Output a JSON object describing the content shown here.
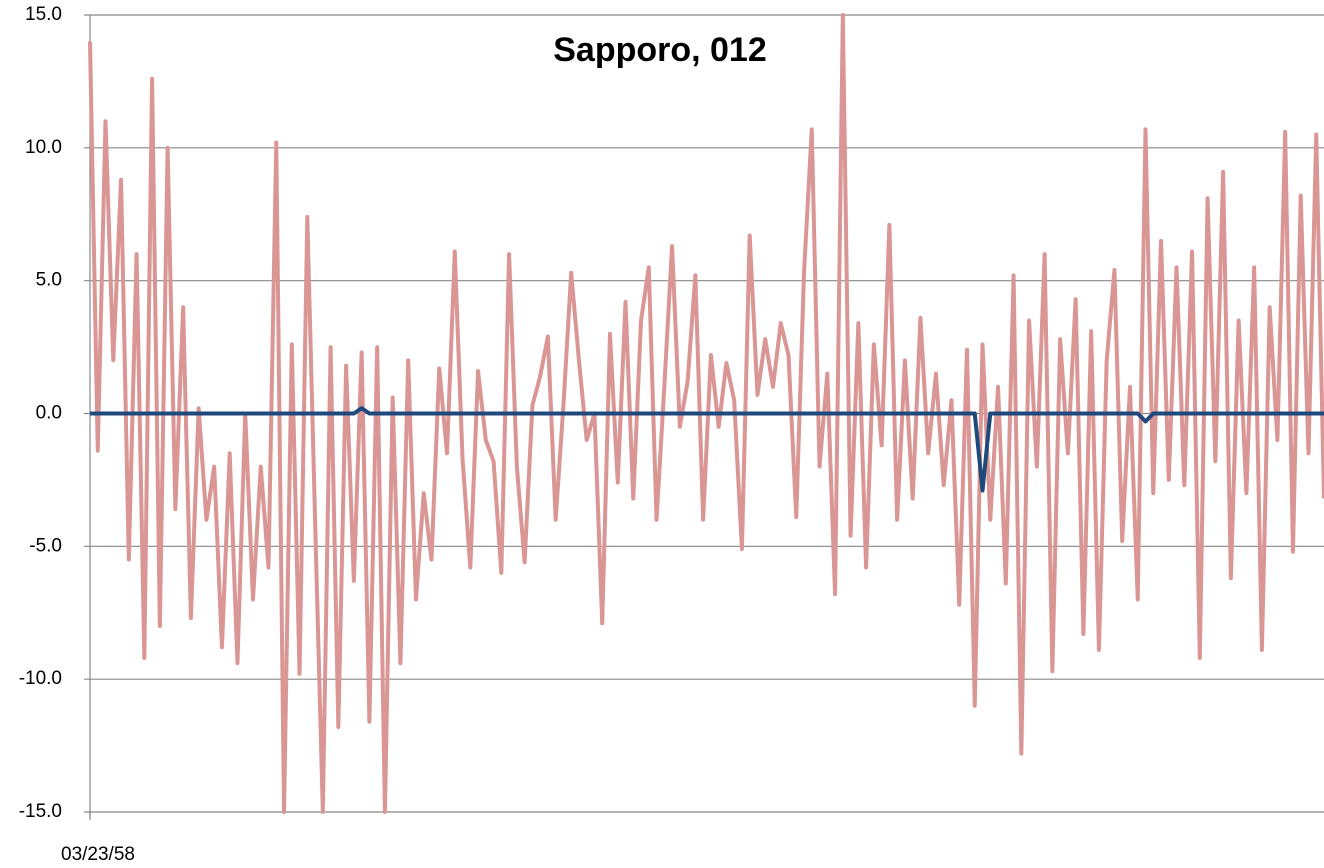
{
  "chart_data": {
    "type": "line",
    "title": "Sapporo, 012",
    "categories": [
      "03/23/58",
      null,
      null,
      null,
      null,
      null,
      null,
      null,
      null,
      null,
      null,
      null,
      null,
      null,
      null,
      null,
      null,
      null,
      null,
      null,
      null,
      null,
      null,
      null,
      null,
      null,
      null,
      null,
      null,
      null,
      null,
      null,
      null,
      null,
      null,
      null,
      null,
      null,
      null,
      null,
      null,
      null,
      null,
      null,
      null,
      null,
      null,
      null,
      null,
      null,
      null,
      null,
      null,
      null,
      null,
      null,
      null,
      null,
      null,
      null,
      null,
      null,
      null,
      null,
      null,
      null,
      null,
      null,
      null,
      null,
      null,
      null,
      null,
      null,
      null,
      null,
      null,
      null,
      null,
      null,
      null,
      null,
      null,
      null,
      null,
      null,
      null,
      null,
      null,
      null,
      null,
      null,
      null,
      null,
      null,
      null,
      null,
      null,
      null,
      null,
      null,
      null,
      null,
      null,
      null,
      null,
      null,
      null,
      null,
      null,
      null,
      null,
      null,
      null,
      null,
      null,
      null,
      null,
      null,
      null,
      null,
      null,
      null,
      null,
      null,
      null,
      null,
      null,
      null,
      null,
      null,
      null,
      null,
      null,
      null,
      null,
      null,
      null,
      null,
      null,
      null,
      null,
      null,
      null,
      null,
      null,
      null,
      null,
      null,
      null,
      null,
      null,
      null,
      null,
      null,
      null,
      null,
      null,
      null,
      null
    ],
    "series": [
      {
        "color": "#d99694",
        "values": [
          14,
          -1.4,
          11,
          2,
          8.8,
          -5.5,
          6,
          -9.2,
          12.6,
          -8,
          10,
          -3.6,
          4,
          -7.7,
          0.2,
          -4,
          -2,
          -8.8,
          -1.5,
          -9.4,
          0,
          -7,
          -2,
          -5.8,
          10.2,
          -15,
          2.6,
          -9.8,
          7.4,
          -4,
          -15,
          2.5,
          -11.8,
          1.8,
          -6.3,
          2.3,
          -11.6,
          2.5,
          -15,
          0.6,
          -9.4,
          2,
          -7,
          -3,
          -5.5,
          1.7,
          -1.5,
          6.1,
          -1.7,
          -5.8,
          1.6,
          -1,
          -1.8,
          -6,
          6,
          -2,
          -5.6,
          0.3,
          1.4,
          2.9,
          -4,
          0.3,
          5.3,
          2,
          -1,
          0,
          -7.9,
          3,
          -2.6,
          4.2,
          -3.2,
          3.5,
          5.5,
          -4,
          1,
          6.3,
          -0.5,
          1.2,
          5.2,
          -4,
          2.2,
          -0.5,
          1.9,
          0.5,
          -5.1,
          6.7,
          0.7,
          2.8,
          1,
          3.4,
          2.2,
          -3.9,
          5.3,
          10.7,
          -2,
          1.5,
          -6.8,
          15,
          -4.6,
          3.4,
          -5.8,
          2.6,
          -1.2,
          7.1,
          -4,
          2,
          -3.2,
          3.6,
          -1.5,
          1.5,
          -2.7,
          0.5,
          -7.2,
          2.4,
          -11,
          2.6,
          -4,
          1,
          -6.4,
          5.2,
          -12.8,
          3.5,
          -2,
          6,
          -9.7,
          2.8,
          -1.5,
          4.3,
          -8.3,
          3.1,
          -8.9,
          2,
          5.4,
          -4.8,
          1,
          -7,
          10.7,
          -3,
          6.5,
          -2.5,
          5.5,
          -2.7,
          6.1,
          -9.2,
          8.1,
          -1.8,
          9.1,
          -6.2,
          3.5,
          -3,
          5.5,
          -8.9,
          4,
          -1,
          10.6,
          -5.2,
          8.2,
          -1.5,
          10.5,
          -3.2
        ]
      },
      {
        "color": "#1f497d",
        "values": [
          0,
          0,
          0,
          0,
          0,
          0,
          0,
          0,
          0,
          0,
          0,
          0,
          0,
          0,
          0,
          0,
          0,
          0,
          0,
          0,
          0,
          0,
          0,
          0,
          0,
          0,
          0,
          0,
          0,
          0,
          0,
          0,
          0,
          0,
          0,
          0.2,
          0,
          0,
          0,
          0,
          0,
          0,
          0,
          0,
          0,
          0,
          0,
          0,
          0,
          0,
          0,
          0,
          0,
          0,
          0,
          0,
          0,
          0,
          0,
          0,
          0,
          0,
          0,
          0,
          0,
          0,
          0,
          0,
          0,
          0,
          0,
          0,
          0,
          0,
          0,
          0,
          0,
          0,
          0,
          0,
          0,
          0,
          0,
          0,
          0,
          0,
          0,
          0,
          0,
          0,
          0,
          0,
          0,
          0,
          0,
          0,
          0,
          0,
          0,
          0,
          0,
          0,
          0,
          0,
          0,
          0,
          0,
          0,
          0,
          0,
          0,
          0,
          0,
          0,
          0,
          -2.9,
          0,
          0,
          0,
          0,
          0,
          0,
          0,
          0,
          0,
          0,
          0,
          0,
          0,
          0,
          0,
          0,
          0,
          0,
          0,
          0,
          -0.3,
          0,
          0,
          0,
          0,
          0,
          0,
          0,
          0,
          0,
          0,
          0,
          0,
          0,
          0,
          0,
          0,
          0,
          0,
          0,
          0,
          0,
          0,
          0
        ]
      }
    ],
    "ylim": [
      -15,
      15
    ],
    "yticks": [
      {
        "value": -15,
        "label": "-15.0"
      },
      {
        "value": -10,
        "label": "-10.0"
      },
      {
        "value": -5,
        "label": "-5.0"
      },
      {
        "value": 0,
        "label": "0.0"
      },
      {
        "value": 5,
        "label": "5.0"
      },
      {
        "value": 10,
        "label": "10.0"
      },
      {
        "value": 15,
        "label": "15.0"
      }
    ],
    "grid": true
  }
}
